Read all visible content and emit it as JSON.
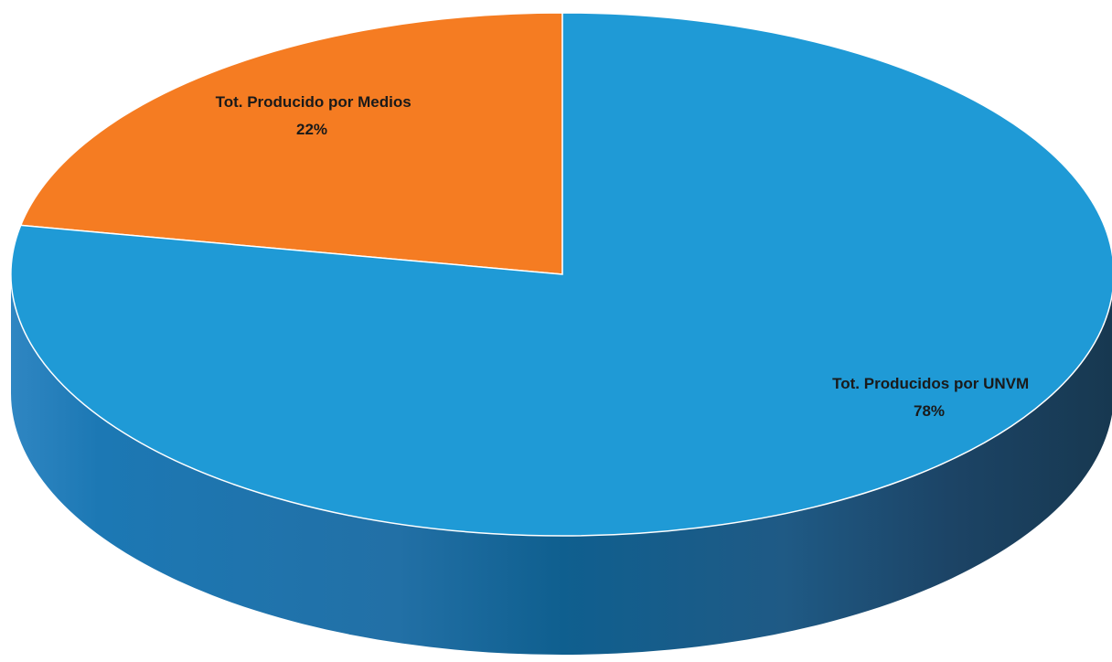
{
  "chart_data": {
    "type": "pie",
    "style": "3d",
    "categories": [
      "Tot. Producido por Medios",
      "Tot. Producidos por UNVM"
    ],
    "values": [
      22,
      78
    ],
    "labels": [
      {
        "name": "Tot. Producido por Medios",
        "percent_text": "22%"
      },
      {
        "name": "Tot. Producidos por UNVM",
        "percent_text": "78%"
      }
    ],
    "colors": [
      "#f57c22",
      "#1f9ad6"
    ],
    "side_colors": [
      "#c45f14",
      "#1a6fa3"
    ],
    "title": "",
    "legend": "none"
  }
}
